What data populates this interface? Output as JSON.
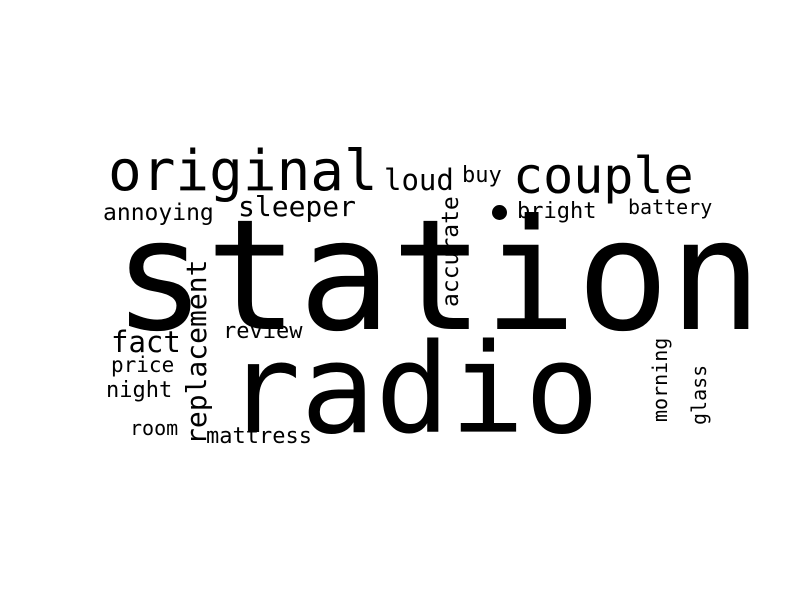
{
  "words": {
    "station": "station",
    "radio": "radio",
    "original": "original",
    "couple": "couple",
    "loud": "loud",
    "buy": "buy",
    "sleeper": "sleeper",
    "annoying": "annoying",
    "accurate": "accurate",
    "bright": "bright",
    "battery": "battery",
    "replacement": "replacement",
    "fact": "fact",
    "review": "review",
    "price": "price",
    "night": "night",
    "room": "room",
    "mattress": "mattress",
    "morning": "morning",
    "glass": "glass"
  },
  "colors": {
    "text": "#000000",
    "background": "#ffffff"
  }
}
